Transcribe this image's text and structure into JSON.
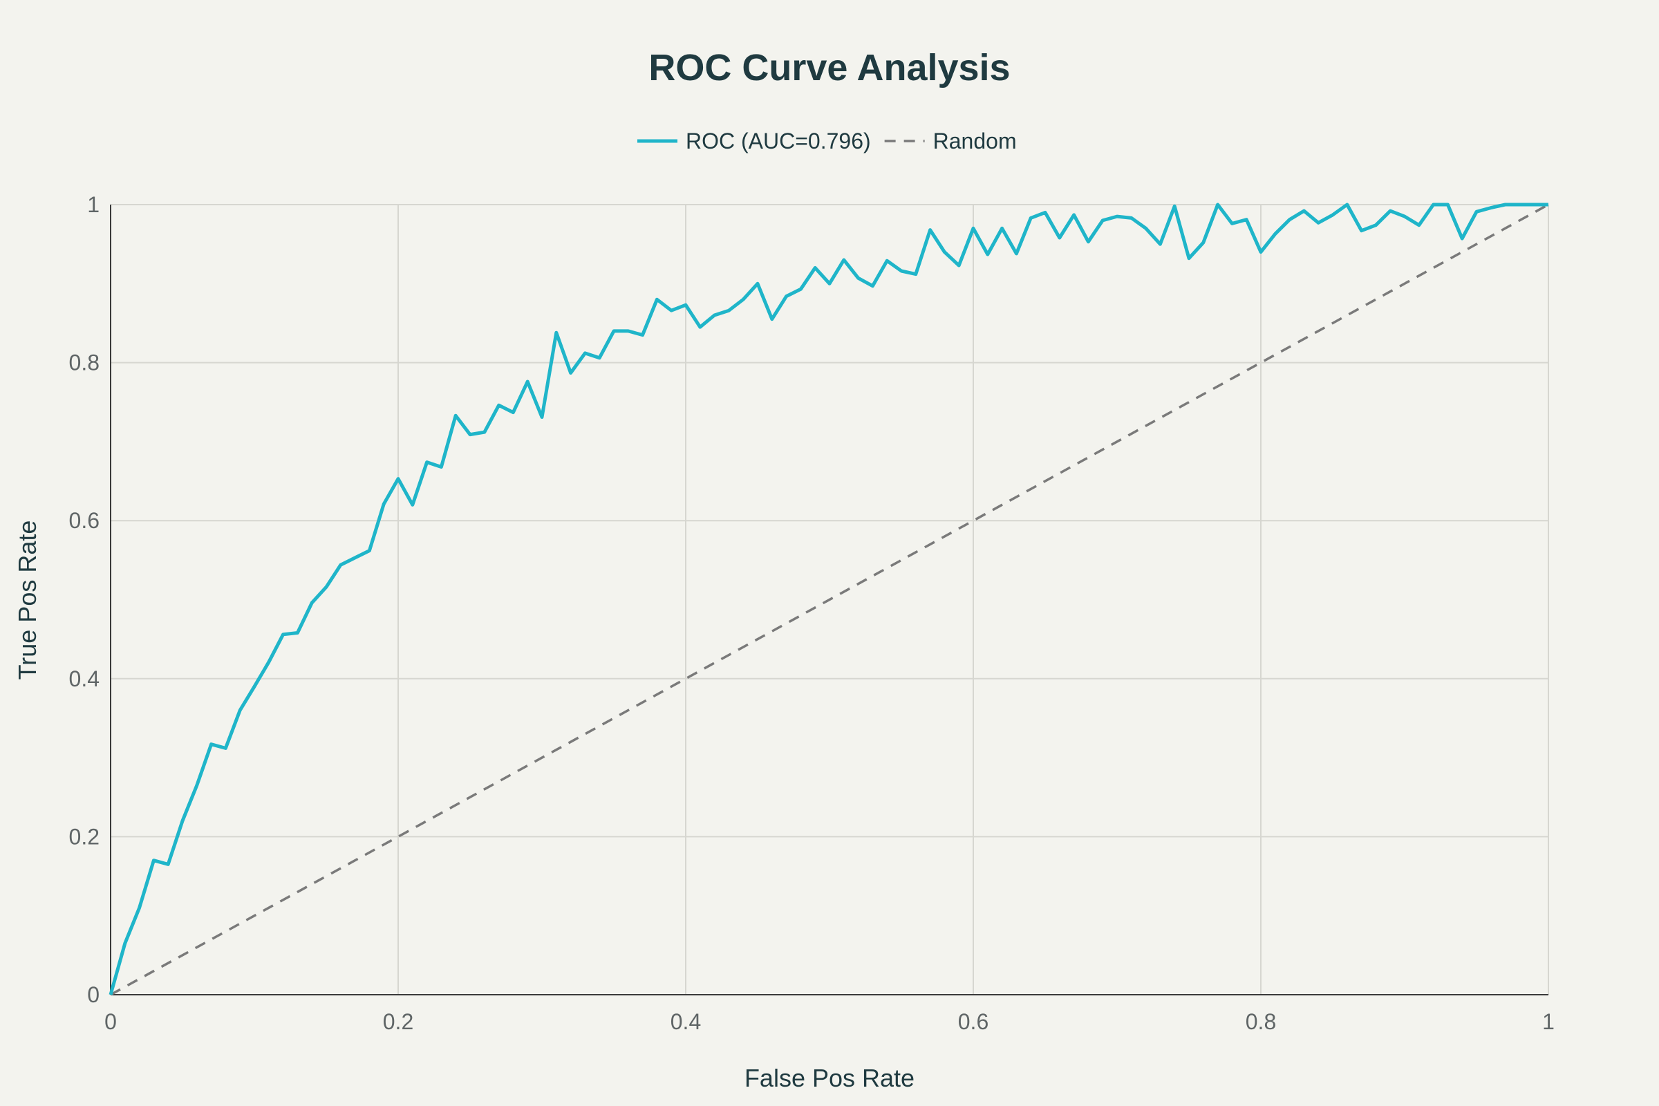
{
  "chart_data": {
    "type": "line",
    "title": "ROC Curve Analysis",
    "xlabel": "False Pos Rate",
    "ylabel": "True Pos Rate",
    "xlim": [
      0,
      1
    ],
    "ylim": [
      0,
      1
    ],
    "grid": true,
    "legend_position": "top-center",
    "x_ticks": [
      {
        "value": 0,
        "label": "0"
      },
      {
        "value": 0.2,
        "label": "0.2"
      },
      {
        "value": 0.4,
        "label": "0.4"
      },
      {
        "value": 0.6,
        "label": "0.6"
      },
      {
        "value": 0.8,
        "label": "0.8"
      },
      {
        "value": 1,
        "label": "1"
      }
    ],
    "y_ticks": [
      {
        "value": 0,
        "label": "0"
      },
      {
        "value": 0.2,
        "label": "0.2"
      },
      {
        "value": 0.4,
        "label": "0.4"
      },
      {
        "value": 0.6,
        "label": "0.6"
      },
      {
        "value": 0.8,
        "label": "0.8"
      },
      {
        "value": 1,
        "label": "1"
      }
    ],
    "series": [
      {
        "name": "ROC (AUC=0.796)",
        "color": "#1fb5c9",
        "style": "solid",
        "x": [
          0,
          0.01,
          0.02,
          0.03,
          0.04,
          0.05,
          0.06,
          0.07,
          0.08,
          0.09,
          0.1,
          0.11,
          0.12,
          0.13,
          0.14,
          0.15,
          0.16,
          0.17,
          0.18,
          0.19,
          0.2,
          0.21,
          0.22,
          0.23,
          0.24,
          0.25,
          0.26,
          0.27,
          0.28,
          0.29,
          0.3,
          0.31,
          0.32,
          0.33,
          0.34,
          0.35,
          0.36,
          0.37,
          0.38,
          0.39,
          0.4,
          0.41,
          0.42,
          0.43,
          0.44,
          0.45,
          0.46,
          0.47,
          0.48,
          0.49,
          0.5,
          0.51,
          0.52,
          0.53,
          0.54,
          0.55,
          0.56,
          0.57,
          0.58,
          0.59,
          0.6,
          0.61,
          0.62,
          0.63,
          0.64,
          0.65,
          0.66,
          0.67,
          0.68,
          0.69,
          0.7,
          0.71,
          0.72,
          0.73,
          0.74,
          0.75,
          0.76,
          0.77,
          0.78,
          0.79,
          0.8,
          0.81,
          0.82,
          0.83,
          0.84,
          0.85,
          0.86,
          0.87,
          0.88,
          0.89,
          0.9,
          0.91,
          0.92,
          0.93,
          0.94,
          0.95,
          0.96,
          0.97,
          0.98,
          0.99,
          1.0
        ],
        "y": [
          0,
          0.065,
          0.11,
          0.17,
          0.165,
          0.22,
          0.265,
          0.317,
          0.312,
          0.36,
          0.39,
          0.421,
          0.456,
          0.458,
          0.496,
          0.516,
          0.544,
          0.553,
          0.562,
          0.621,
          0.653,
          0.62,
          0.674,
          0.668,
          0.733,
          0.709,
          0.712,
          0.746,
          0.737,
          0.776,
          0.731,
          0.838,
          0.787,
          0.812,
          0.806,
          0.84,
          0.84,
          0.835,
          0.88,
          0.866,
          0.873,
          0.845,
          0.86,
          0.866,
          0.88,
          0.9,
          0.855,
          0.884,
          0.893,
          0.92,
          0.9,
          0.93,
          0.907,
          0.897,
          0.929,
          0.916,
          0.912,
          0.968,
          0.94,
          0.923,
          0.97,
          0.937,
          0.97,
          0.938,
          0.983,
          0.99,
          0.958,
          0.987,
          0.953,
          0.98,
          0.985,
          0.983,
          0.97,
          0.95,
          0.998,
          0.932,
          0.952,
          1.0,
          0.976,
          0.981,
          0.94,
          0.963,
          0.981,
          0.992,
          0.977,
          0.987,
          1.0,
          0.967,
          0.974,
          0.992,
          0.985,
          0.974,
          1.0,
          1.0,
          0.957,
          0.991,
          0.996,
          1.0,
          1.0,
          1.0,
          1.0
        ]
      },
      {
        "name": "Random",
        "color": "#7a7a7a",
        "style": "dashed",
        "x": [
          0,
          1
        ],
        "y": [
          0,
          1
        ]
      }
    ]
  }
}
